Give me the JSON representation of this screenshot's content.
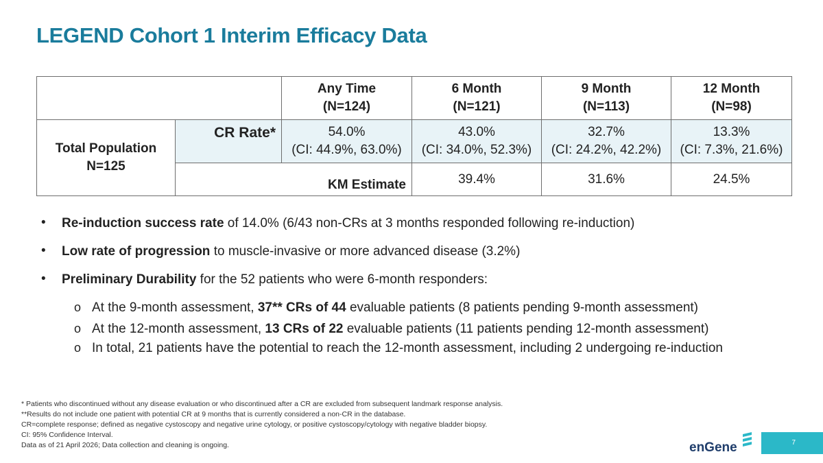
{
  "title": "LEGEND Cohort 1 Interim Efficacy Data",
  "table": {
    "headers": [
      {
        "line1": "Any Time",
        "line2": "(N=124)"
      },
      {
        "line1": "6 Month",
        "line2": "(N=121)"
      },
      {
        "line1": "9 Month",
        "line2": "(N=113)"
      },
      {
        "line1": "12 Month",
        "line2": "(N=98)"
      }
    ],
    "population_line1": "Total Population",
    "population_line2": "N=125",
    "cr_label": "CR Rate*",
    "cr_values": [
      {
        "rate": "54.0%",
        "ci": "(CI: 44.9%, 63.0%)"
      },
      {
        "rate": "43.0%",
        "ci": "(CI: 34.0%, 52.3%)"
      },
      {
        "rate": "32.7%",
        "ci": "(CI: 24.2%, 42.2%)"
      },
      {
        "rate": "13.3%",
        "ci": "(CI: 7.3%, 21.6%)"
      }
    ],
    "km_label": "KM Estimate",
    "km_values": [
      "39.4%",
      "31.6%",
      "24.5%"
    ]
  },
  "bullets": [
    {
      "bold": "Re-induction success rate",
      "rest": " of 14.0% (6/43 non-CRs at 3 months responded following re-induction)"
    },
    {
      "bold": "Low rate of progression",
      "rest": " to muscle-invasive or more advanced disease (3.2%)"
    },
    {
      "bold": "Preliminary Durability",
      "rest": " for the 52 patients who were 6-month responders:"
    }
  ],
  "sub_bullets": [
    {
      "pre": "At the 9-month assessment, ",
      "bold": "37** CRs of 44",
      "post": " evaluable patients (8 patients pending 9-month assessment)"
    },
    {
      "pre": "At the 12-month assessment, ",
      "bold": "13 CRs of 22",
      "post": " evaluable patients (11 patients pending 12-month assessment)"
    },
    {
      "pre": "In total, 21 patients have the potential to reach the 12-month assessment, including 2 undergoing re-induction",
      "bold": "",
      "post": ""
    }
  ],
  "sub_marker": "o",
  "bullet_marker": "•",
  "footnotes": [
    "* Patients who discontinued without any disease evaluation or who discontinued after a CR are excluded from subsequent landmark response analysis.",
    "**Results do not include one patient with potential CR at 9 months that is currently considered a non-CR in the database.",
    "CR=complete response; defined as negative cystoscopy and negative urine cytology, or positive cystoscopy/cytology with negative bladder biopsy.",
    "CI: 95% Confidence Interval.",
    "Data as of 21 April 2026; Data collection and cleaning is ongoing."
  ],
  "logo_text": "enGene",
  "page_number": "7",
  "colors": {
    "title": "#1a7c9c",
    "highlight_row": "#e8f3f7",
    "page_box": "#2bb8c8",
    "logo": "#1f3d6b"
  }
}
